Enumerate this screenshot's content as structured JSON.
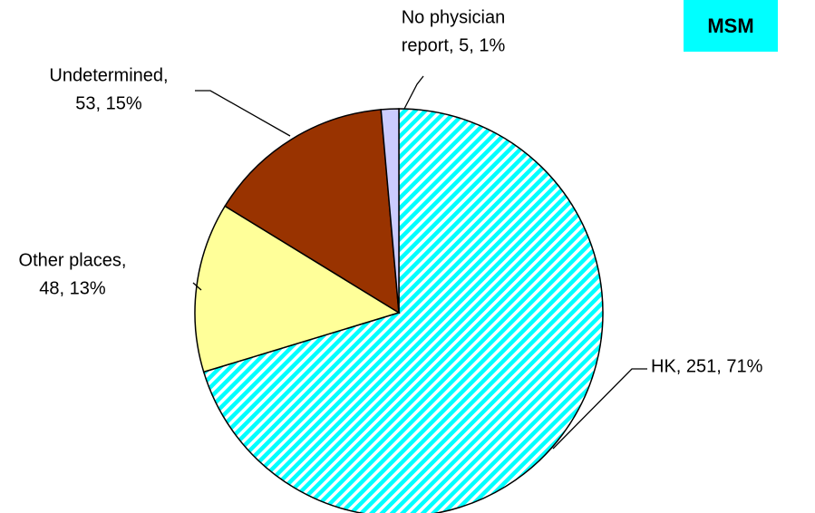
{
  "chart_data": {
    "type": "pie",
    "badge": "MSM",
    "categories": [
      "HK",
      "Other places",
      "Undetermined",
      "No physician report"
    ],
    "values": [
      251,
      48,
      53,
      5
    ],
    "value_labels": [
      [
        "HK, 251, 71%"
      ],
      [
        "Other places,",
        "48, 13%"
      ],
      [
        "Undetermined,",
        "53, 15%"
      ],
      [
        "No physician",
        "report, 5, 1%"
      ]
    ],
    "colors": [
      "#00ffff",
      "#ffff99",
      "#993300",
      "#ccccff"
    ],
    "hatched": [
      true,
      false,
      false,
      false
    ]
  }
}
